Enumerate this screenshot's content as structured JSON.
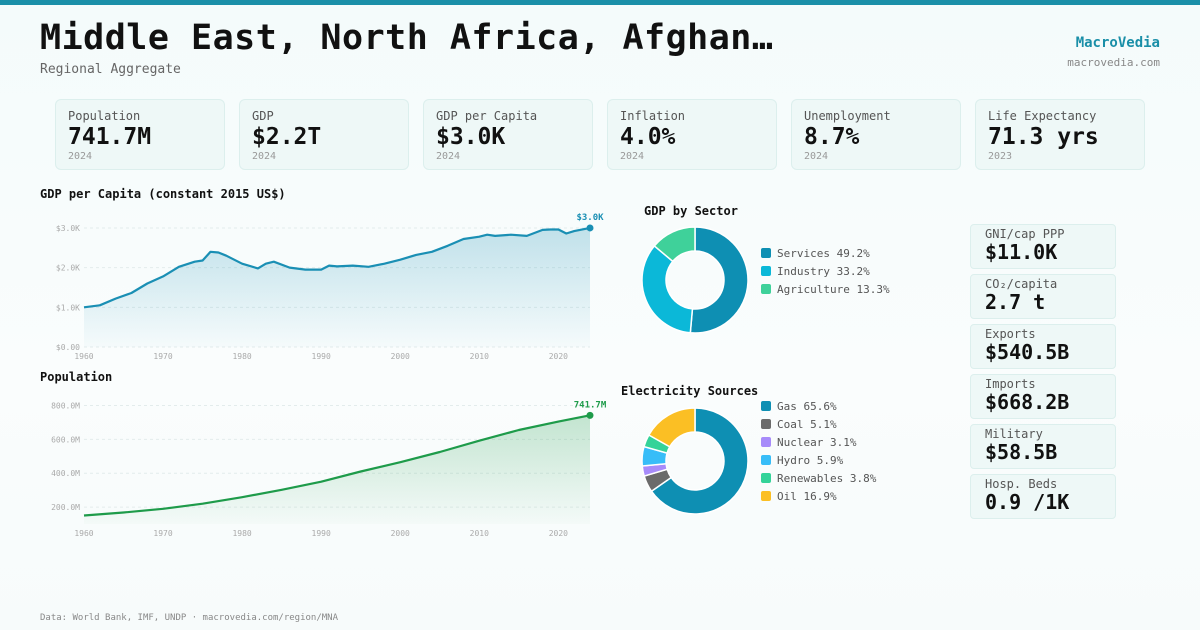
{
  "header": {
    "title": "Middle East, North Africa, Afghan…",
    "subtitle": "Regional Aggregate",
    "brand": "MacroVedia",
    "brand_url": "macrovedia.com"
  },
  "kpis": [
    {
      "label": "Population",
      "value": "741.7M",
      "year": "2024"
    },
    {
      "label": "GDP",
      "value": "$2.2T",
      "year": "2024"
    },
    {
      "label": "GDP per Capita",
      "value": "$3.0K",
      "year": "2024"
    },
    {
      "label": "Inflation",
      "value": "4.0%",
      "year": "2024"
    },
    {
      "label": "Unemployment",
      "value": "8.7%",
      "year": "2024"
    },
    {
      "label": "Life Expectancy",
      "value": "71.3 yrs",
      "year": "2023"
    }
  ],
  "side_stats": [
    {
      "label": "GNI/cap PPP",
      "value": "$11.0K"
    },
    {
      "label": "CO₂/capita",
      "value": "2.7 t"
    },
    {
      "label": "Exports",
      "value": "$540.5B"
    },
    {
      "label": "Imports",
      "value": "$668.2B"
    },
    {
      "label": "Military",
      "value": "$58.5B"
    },
    {
      "label": "Hosp. Beds",
      "value": "0.9 /1K"
    }
  ],
  "footer": "Data: World Bank, IMF, UNDP · macrovedia.com/region/MNA",
  "colors": {
    "accent": "#1a8fa8",
    "gdp_line": "#1a8fb4",
    "pop_line": "#1e9b4a"
  },
  "chart_data": [
    {
      "type": "area",
      "title": "GDP per Capita (constant 2015 US$)",
      "x": [
        1960,
        1962,
        1964,
        1966,
        1968,
        1970,
        1972,
        1974,
        1975,
        1976,
        1977,
        1978,
        1980,
        1982,
        1983,
        1984,
        1986,
        1988,
        1990,
        1991,
        1992,
        1994,
        1996,
        1998,
        2000,
        2002,
        2004,
        2006,
        2008,
        2010,
        2011,
        2012,
        2014,
        2016,
        2018,
        2019,
        2020,
        2021,
        2022,
        2024
      ],
      "y": [
        1000,
        1050,
        1220,
        1360,
        1600,
        1780,
        2020,
        2150,
        2180,
        2400,
        2380,
        2300,
        2100,
        1980,
        2100,
        2150,
        2000,
        1950,
        1950,
        2050,
        2030,
        2050,
        2020,
        2100,
        2200,
        2320,
        2400,
        2550,
        2720,
        2780,
        2830,
        2800,
        2830,
        2800,
        2950,
        2960,
        2960,
        2860,
        2920,
        3000
      ],
      "yticks": [
        "$0.00",
        "$1.0K",
        "$2.0K",
        "$3.0K"
      ],
      "ylim": [
        0,
        3200
      ],
      "xticks": [
        "1960",
        "1970",
        "1980",
        "1990",
        "2000",
        "2010",
        "2020"
      ],
      "end_label": "$3.0K"
    },
    {
      "type": "area",
      "title": "Population",
      "x": [
        1960,
        1965,
        1970,
        1975,
        1980,
        1985,
        1990,
        1995,
        2000,
        2005,
        2010,
        2015,
        2020,
        2024
      ],
      "y": [
        150,
        168,
        190,
        220,
        258,
        302,
        350,
        410,
        465,
        525,
        592,
        655,
        705,
        741.7
      ],
      "yticks": [
        "200.0M",
        "400.0M",
        "600.0M",
        "800.0M"
      ],
      "ylim": [
        100,
        850
      ],
      "xticks": [
        "1960",
        "1970",
        "1980",
        "1990",
        "2000",
        "2010",
        "2020"
      ],
      "end_label": "741.7M"
    },
    {
      "type": "pie",
      "title": "GDP by Sector",
      "slices": [
        {
          "label": "Services",
          "value": 49.2,
          "display": "Services 49.2%",
          "color": "#0e8fb3"
        },
        {
          "label": "Industry",
          "value": 33.2,
          "display": "Industry 33.2%",
          "color": "#0bb8d8"
        },
        {
          "label": "Agriculture",
          "value": 13.3,
          "display": "Agriculture 13.3%",
          "color": "#3fd19a"
        }
      ]
    },
    {
      "type": "pie",
      "title": "Electricity Sources",
      "slices": [
        {
          "label": "Gas",
          "value": 65.6,
          "display": "Gas 65.6%",
          "color": "#0e8fb3"
        },
        {
          "label": "Coal",
          "value": 5.1,
          "display": "Coal 5.1%",
          "color": "#6b6b6b"
        },
        {
          "label": "Nuclear",
          "value": 3.1,
          "display": "Nuclear 3.1%",
          "color": "#a78bfa"
        },
        {
          "label": "Hydro",
          "value": 5.9,
          "display": "Hydro 5.9%",
          "color": "#38bdf8"
        },
        {
          "label": "Renewables",
          "value": 3.8,
          "display": "Renewables 3.8%",
          "color": "#34d399"
        },
        {
          "label": "Oil",
          "value": 16.9,
          "display": "Oil 16.9%",
          "color": "#fbbf24"
        }
      ]
    }
  ]
}
